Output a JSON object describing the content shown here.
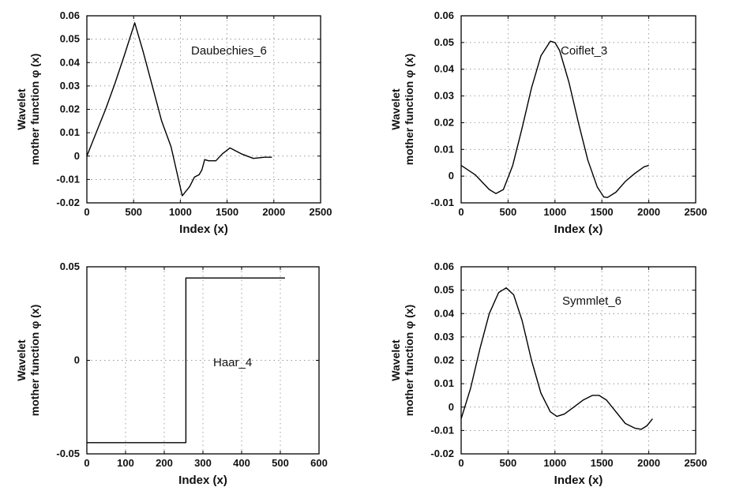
{
  "chart_data": [
    {
      "type": "line",
      "annotation": "Daubechies_6",
      "xlabel": "Index (x)",
      "ylabel_line1": "Wavelet",
      "ylabel_line2": "mother function φ (x)",
      "xlim": [
        0,
        2500
      ],
      "ylim": [
        -0.02,
        0.06
      ],
      "xticks": [
        0,
        500,
        1000,
        1500,
        2000,
        2500
      ],
      "xtick_labels": [
        "0",
        "500",
        "1000",
        "1500",
        "2000",
        "2500"
      ],
      "yticks": [
        -0.02,
        -0.01,
        0,
        0.01,
        0.02,
        0.03,
        0.04,
        0.05,
        0.06
      ],
      "ytick_labels": [
        "-0.02",
        "-0.01",
        "0",
        "0.01",
        "0.02",
        "0.03",
        "0.04",
        "0.05",
        "0.06"
      ],
      "grid": true,
      "x": [
        0,
        100,
        200,
        300,
        400,
        512,
        600,
        700,
        800,
        900,
        1020,
        1100,
        1150,
        1200,
        1230,
        1260,
        1300,
        1380,
        1450,
        1530,
        1650,
        1780,
        1900,
        1980
      ],
      "y": [
        0,
        0.01,
        0.02,
        0.031,
        0.043,
        0.057,
        0.045,
        0.03,
        0.015,
        0.004,
        -0.017,
        -0.013,
        -0.009,
        -0.008,
        -0.006,
        -0.0015,
        -0.002,
        -0.002,
        0.001,
        0.0035,
        0.001,
        -0.001,
        -0.0005,
        -0.0005
      ]
    },
    {
      "type": "line",
      "annotation": "Coiflet_3",
      "xlabel": "Index (x)",
      "ylabel_line1": "Wavelet",
      "ylabel_line2": "mother function φ (x)",
      "xlim": [
        0,
        2500
      ],
      "ylim": [
        -0.01,
        0.06
      ],
      "xticks": [
        0,
        500,
        1000,
        1500,
        2000,
        2500
      ],
      "xtick_labels": [
        "0",
        "500",
        "1000",
        "1500",
        "2000",
        "2500"
      ],
      "yticks": [
        -0.01,
        0,
        0.01,
        0.02,
        0.03,
        0.04,
        0.05,
        0.06
      ],
      "ytick_labels": [
        "-0.01",
        "0",
        "0.01",
        "0.02",
        "0.03",
        "0.04",
        "0.05",
        "0.06"
      ],
      "grid": true,
      "x": [
        0,
        150,
        300,
        370,
        450,
        550,
        650,
        750,
        850,
        950,
        1000,
        1050,
        1150,
        1250,
        1350,
        1450,
        1520,
        1560,
        1650,
        1750,
        1850,
        1950,
        2000
      ],
      "y": [
        0.004,
        0.0005,
        -0.005,
        -0.0065,
        -0.005,
        0.004,
        0.018,
        0.033,
        0.045,
        0.0505,
        0.05,
        0.047,
        0.035,
        0.02,
        0.006,
        -0.004,
        -0.0078,
        -0.008,
        -0.006,
        -0.002,
        0.001,
        0.0035,
        0.004
      ]
    },
    {
      "type": "line",
      "annotation": "Haar_4",
      "xlabel": "Index (x)",
      "ylabel_line1": "Wavelet",
      "ylabel_line2": "mother function φ (x)",
      "xlim": [
        0,
        600
      ],
      "ylim": [
        -0.05,
        0.05
      ],
      "xticks": [
        0,
        100,
        200,
        300,
        400,
        500,
        600
      ],
      "xtick_labels": [
        "0",
        "100",
        "200",
        "300",
        "400",
        "500",
        "600"
      ],
      "yticks": [
        -0.05,
        0,
        0.05
      ],
      "ytick_labels": [
        "-0.05",
        "0",
        "0.05"
      ],
      "grid": true,
      "x": [
        0,
        256,
        256,
        512
      ],
      "y": [
        -0.044,
        -0.044,
        0.044,
        0.044
      ]
    },
    {
      "type": "line",
      "annotation": "Symmlet_6",
      "xlabel": "Index (x)",
      "ylabel_line1": "Wavelet",
      "ylabel_line2": "mother function φ (x)",
      "xlim": [
        0,
        2500
      ],
      "ylim": [
        -0.02,
        0.06
      ],
      "xticks": [
        0,
        500,
        1000,
        1500,
        2000,
        2500
      ],
      "xtick_labels": [
        "0",
        "500",
        "1000",
        "1500",
        "2000",
        "2500"
      ],
      "yticks": [
        -0.02,
        -0.01,
        0,
        0.01,
        0.02,
        0.03,
        0.04,
        0.05,
        0.06
      ],
      "ytick_labels": [
        "-0.02",
        "-0.01",
        "0",
        "0.01",
        "0.02",
        "0.03",
        "0.04",
        "0.05",
        "0.06"
      ],
      "grid": true,
      "x": [
        0,
        100,
        200,
        300,
        400,
        480,
        560,
        650,
        750,
        850,
        950,
        1020,
        1100,
        1200,
        1300,
        1400,
        1470,
        1550,
        1650,
        1750,
        1850,
        1920,
        1980,
        2040
      ],
      "y": [
        -0.005,
        0.008,
        0.025,
        0.04,
        0.049,
        0.051,
        0.048,
        0.037,
        0.02,
        0.006,
        -0.002,
        -0.004,
        -0.003,
        0.0,
        0.003,
        0.005,
        0.005,
        0.003,
        -0.002,
        -0.007,
        -0.009,
        -0.0095,
        -0.008,
        -0.005
      ]
    }
  ]
}
